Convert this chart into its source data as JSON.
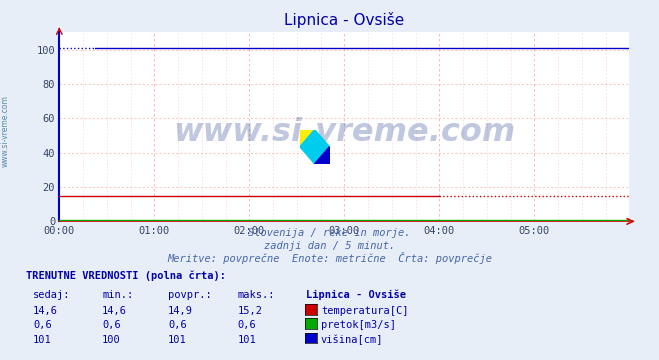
{
  "title": "Lipnica - Ovsiše",
  "fig_bg_color": "#e8eef8",
  "plot_bg_color": "#ffffff",
  "xlim": [
    0,
    288
  ],
  "ylim": [
    0,
    110
  ],
  "yticks": [
    0,
    20,
    40,
    60,
    80,
    100
  ],
  "xtick_positions": [
    0,
    48,
    96,
    144,
    192,
    240
  ],
  "xtick_labels": [
    "00:00",
    "01:00",
    "02:00",
    "03:00",
    "04:00",
    "05:00"
  ],
  "n_points": 289,
  "temp_val": 14.6,
  "pretok_val": 0.6,
  "visina_val": 101,
  "visina_dotted_end": 18,
  "temp_solid_end": 192,
  "red_color": "#cc0000",
  "green_color": "#00aa00",
  "blue_color": "#0000cc",
  "grid_major_color": "#ffaaaa",
  "grid_minor_color": "#ffcccc",
  "axis_left_color": "#0000cc",
  "axis_bottom_color": "#cc0000",
  "title_color": "#0000aa",
  "subtitle_color": "#4466aa",
  "table_color": "#0000aa",
  "watermark_text": "www.si-vreme.com",
  "watermark_color": "#1a3a8a",
  "left_label": "www.si-vreme.com",
  "left_label_color": "#5588aa",
  "subtitle1": "Slovenija / reke in morje.",
  "subtitle2": "zadnji dan / 5 minut.",
  "subtitle3": "Meritve: povprečne  Enote: metrične  Črta: povprečje",
  "table_header": "TRENUTNE VREDNOSTI (polna črta):",
  "col_headers": [
    "sedaj:",
    "min.:",
    "povpr.:",
    "maks.:",
    "Lipnica - Ovsiše"
  ],
  "row1_vals": [
    "14,6",
    "14,6",
    "14,9",
    "15,2"
  ],
  "row1_label": "temperatura[C]",
  "row2_vals": [
    "0,6",
    "0,6",
    "0,6",
    "0,6"
  ],
  "row2_label": "pretok[m3/s]",
  "row3_vals": [
    "101",
    "100",
    "101",
    "101"
  ],
  "row3_label": "višina[cm]"
}
